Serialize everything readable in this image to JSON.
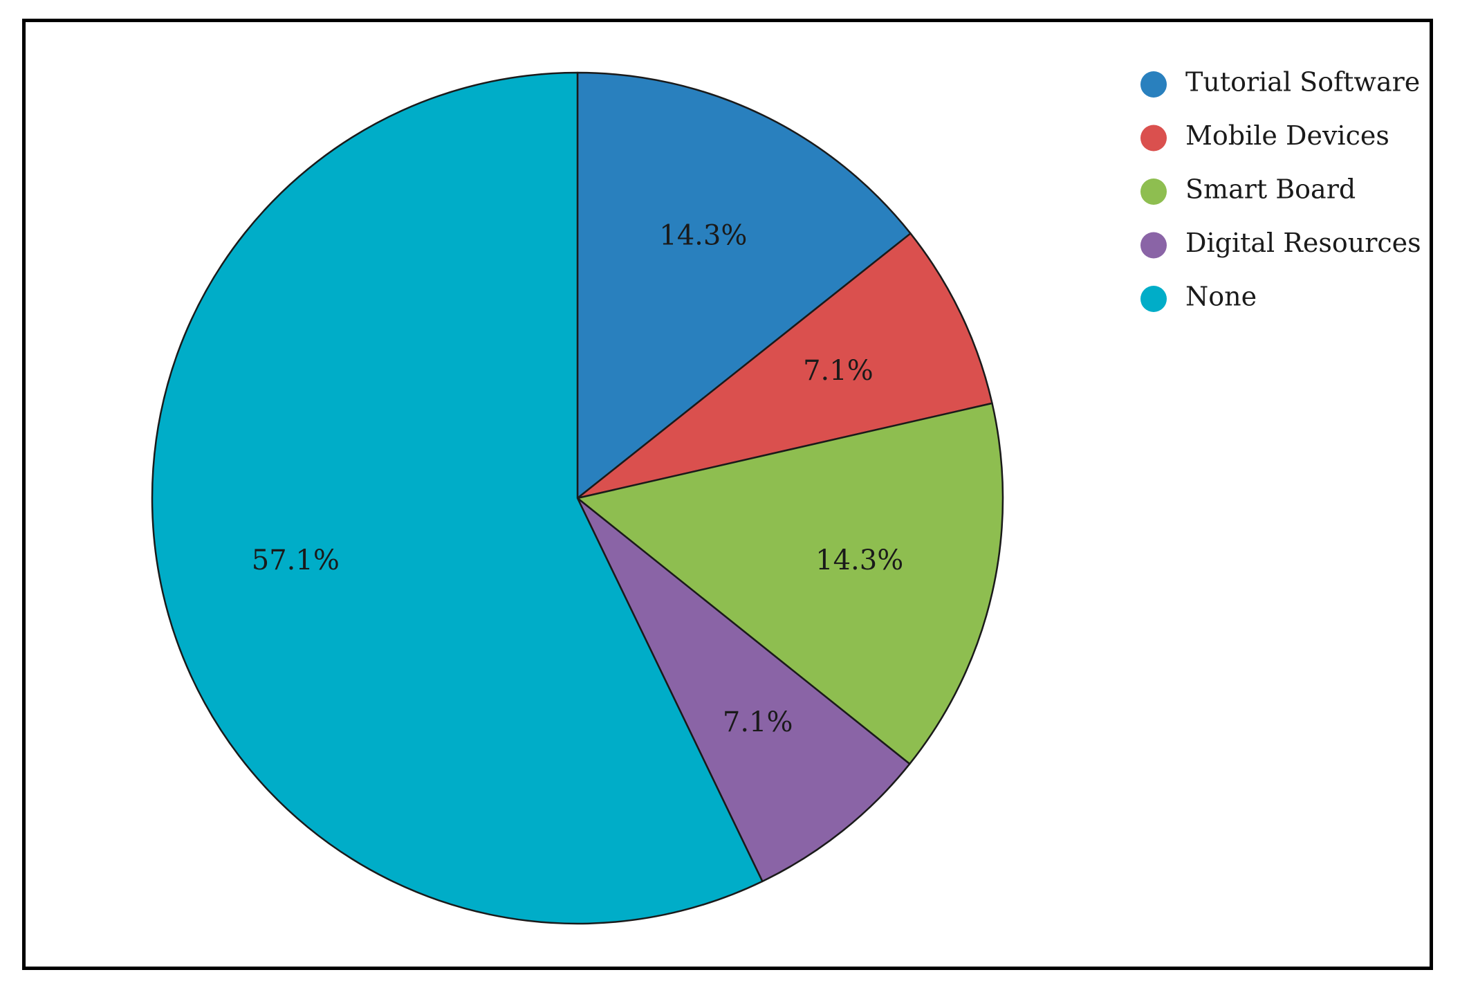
{
  "chart_data": {
    "type": "pie",
    "title": "",
    "legend_position": "top-right",
    "slices": [
      {
        "name": "Tutorial Software",
        "value": 14.3,
        "label": "14.3%",
        "color": "#2980BE"
      },
      {
        "name": "Mobile Devices",
        "value": 7.1,
        "label": "7.1%",
        "color": "#DA504E"
      },
      {
        "name": "Smart Board",
        "value": 14.3,
        "label": "14.3%",
        "color": "#8EBE50"
      },
      {
        "name": "Digital Resources",
        "value": 7.1,
        "label": "7.1%",
        "color": "#8A64A6"
      },
      {
        "name": "None",
        "value": 57.1,
        "label": "57.1%",
        "color": "#00ADC8"
      }
    ]
  }
}
